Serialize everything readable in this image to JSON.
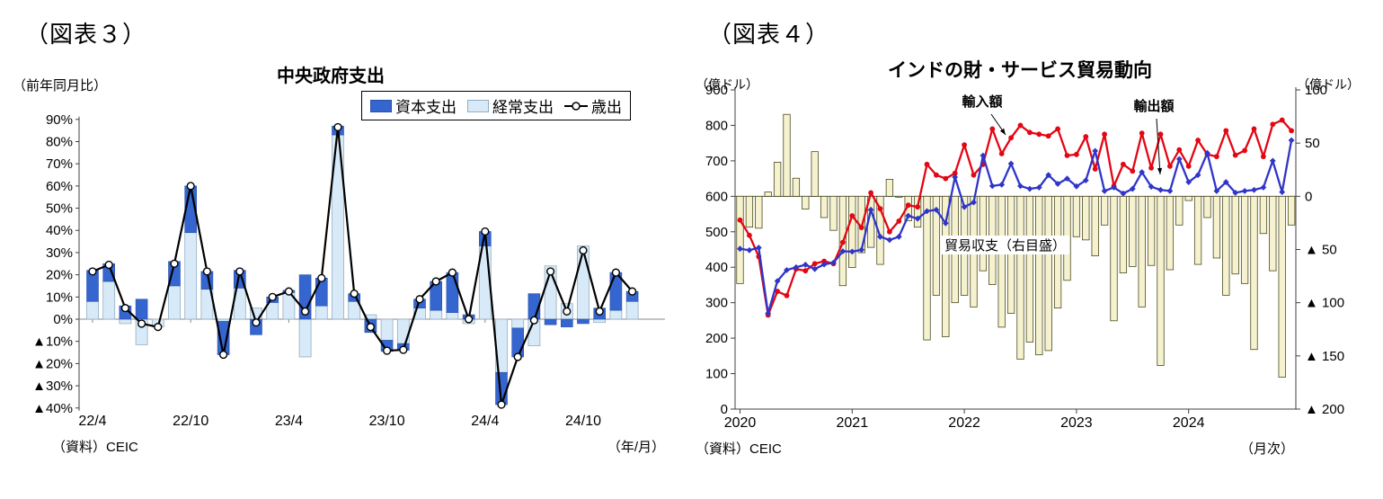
{
  "page": {
    "background": "#ffffff"
  },
  "chart_data": [
    {
      "type": "bar",
      "subtype": "stacked-bars-with-line",
      "tag": "（図表３）",
      "title": "中央政府支出",
      "axis_unit": "（前年同月比）",
      "source": "（資料）CEIC",
      "x_unit": "（年/月）",
      "legend": {
        "capital": "資本支出",
        "current": "経常支出",
        "line": "歳出"
      },
      "colors": {
        "capital": "#3565CE",
        "capital_border": "#2a4faa",
        "current": "#D8EAF8",
        "current_border": "#92AEC4",
        "line": "#000000",
        "marker_fill": "#ffffff"
      },
      "ylim": [
        -40,
        90
      ],
      "ytick_labels": [
        "90%",
        "80%",
        "70%",
        "60%",
        "50%",
        "40%",
        "30%",
        "20%",
        "10%",
        "0%",
        "▲10%",
        "▲20%",
        "▲30%",
        "▲40%"
      ],
      "ytick_values": [
        90,
        80,
        70,
        60,
        50,
        40,
        30,
        20,
        10,
        0,
        -10,
        -20,
        -30,
        -40
      ],
      "xtick_indices": [
        0,
        6,
        12,
        18,
        24,
        30
      ],
      "categories": [
        "22/4",
        "22/5",
        "22/6",
        "22/7",
        "22/8",
        "22/9",
        "22/10",
        "22/11",
        "22/12",
        "23/1",
        "23/2",
        "23/3",
        "23/4",
        "23/5",
        "23/6",
        "23/7",
        "23/8",
        "23/9",
        "23/10",
        "23/11",
        "23/12",
        "24/1",
        "24/2",
        "24/3",
        "24/4",
        "24/5",
        "24/6",
        "24/7",
        "24/8",
        "24/9",
        "24/10",
        "24/11",
        "24/12",
        "25/1"
      ],
      "series": [
        {
          "name": "経常支出",
          "role": "current",
          "values": [
            8,
            17,
            -2,
            -11.5,
            -3.5,
            15,
            39,
            13.5,
            -1,
            14,
            5,
            7.5,
            12,
            -17,
            6,
            83,
            8,
            2,
            -9.5,
            -11,
            5,
            4,
            3,
            -2,
            33,
            -24,
            -4,
            -12,
            24,
            7,
            33,
            -1.5,
            4,
            8
          ]
        },
        {
          "name": "資本支出",
          "role": "capital",
          "values": [
            14,
            8,
            6,
            9,
            0,
            11,
            21,
            8,
            -15,
            8,
            -7,
            2.5,
            1,
            20,
            12.5,
            4,
            3.5,
            -6,
            -5,
            -3,
            4,
            13,
            18,
            2,
            6.5,
            -14.5,
            -13,
            11.5,
            -2.5,
            -3.5,
            -2,
            5,
            17,
            4.5
          ]
        },
        {
          "name": "歳出",
          "role": "line",
          "values": [
            21.5,
            24.5,
            5,
            -2,
            -3.5,
            25,
            60,
            21.5,
            -16,
            21.5,
            -1.5,
            10,
            12.5,
            3.5,
            18.5,
            86.5,
            11.5,
            -3.5,
            -14.2,
            -13.8,
            9,
            17,
            21,
            0,
            39.5,
            -38.5,
            -17,
            -0.5,
            21.5,
            3.5,
            31,
            3.5,
            21,
            12.5
          ]
        }
      ]
    },
    {
      "type": "bar",
      "subtype": "bars-with-two-lines-dual-axis",
      "tag": "（図表４）",
      "title": "インドの財・サービス貿易動向",
      "axis_unit_left": "（億ドル）",
      "axis_unit_right": "（億ドル）",
      "source": "（資料）CEIC",
      "x_unit": "（月次）",
      "annotations": {
        "imports": "輸入額",
        "exports": "輸出額",
        "balance": "貿易収支（右目盛）"
      },
      "colors": {
        "imports": "#E30613",
        "exports": "#2F35C8",
        "bars": "#F6F2CF",
        "bars_border": "#4a4a20"
      },
      "ylim_left": [
        0,
        900
      ],
      "ylim_right": [
        -200,
        100
      ],
      "ytick_labels_left": [
        "900",
        "800",
        "700",
        "600",
        "500",
        "400",
        "300",
        "200",
        "100",
        "0"
      ],
      "ytick_values_left": [
        900,
        800,
        700,
        600,
        500,
        400,
        300,
        200,
        100,
        0
      ],
      "ytick_labels_right": [
        "100",
        "50",
        "0",
        "▲ 50",
        "▲ 100",
        "▲ 150",
        "▲ 200"
      ],
      "ytick_values_right": [
        100,
        50,
        0,
        -50,
        -100,
        -150,
        -200
      ],
      "years": [
        "2020",
        "2021",
        "2022",
        "2023",
        "2024"
      ],
      "categories": [
        "2020/1",
        "2020/2",
        "2020/3",
        "2020/4",
        "2020/5",
        "2020/6",
        "2020/7",
        "2020/8",
        "2020/9",
        "2020/10",
        "2020/11",
        "2020/12",
        "2021/1",
        "2021/2",
        "2021/3",
        "2021/4",
        "2021/5",
        "2021/6",
        "2021/7",
        "2021/8",
        "2021/9",
        "2021/10",
        "2021/11",
        "2021/12",
        "2022/1",
        "2022/2",
        "2022/3",
        "2022/4",
        "2022/5",
        "2022/6",
        "2022/7",
        "2022/8",
        "2022/9",
        "2022/10",
        "2022/11",
        "2022/12",
        "2023/1",
        "2023/2",
        "2023/3",
        "2023/4",
        "2023/5",
        "2023/6",
        "2023/7",
        "2023/8",
        "2023/9",
        "2023/10",
        "2023/11",
        "2023/12",
        "2024/1",
        "2024/2",
        "2024/3",
        "2024/4",
        "2024/5",
        "2024/6",
        "2024/7",
        "2024/8",
        "2024/9",
        "2024/10",
        "2024/11",
        "2024/12"
      ],
      "series": [
        {
          "name": "貿易収支（右目盛）",
          "role": "balance",
          "axis": "right",
          "values": [
            -82,
            -29,
            -30,
            4,
            32,
            77,
            17,
            -12,
            42,
            -20,
            -32,
            -84,
            -67,
            -53,
            -48,
            -64,
            16,
            0,
            -23,
            -29,
            -135,
            -93,
            -132,
            -100,
            -93,
            -104,
            -70,
            -83,
            -123,
            -110,
            -153,
            -137,
            -149,
            -145,
            -105,
            -79,
            -38,
            -41,
            -56,
            -27,
            -117,
            -72,
            -66,
            -104,
            -65,
            -159,
            -69,
            -27,
            -4,
            -64,
            -20,
            -58,
            -93,
            -73,
            -82,
            -144,
            -35,
            -70,
            -170,
            -27
          ]
        },
        {
          "name": "輸入額",
          "role": "imports",
          "axis": "left",
          "values": [
            533,
            490,
            430,
            265,
            332,
            320,
            395,
            390,
            410,
            417,
            410,
            470,
            545,
            512,
            610,
            565,
            500,
            530,
            575,
            570,
            690,
            660,
            650,
            665,
            745,
            660,
            690,
            790,
            720,
            765,
            800,
            780,
            775,
            770,
            790,
            715,
            718,
            768,
            677,
            775,
            629,
            690,
            671,
            778,
            680,
            775,
            685,
            731,
            685,
            758,
            718,
            712,
            785,
            716,
            729,
            790,
            712,
            803,
            815,
            785
          ]
        },
        {
          "name": "輸出額",
          "role": "exports",
          "axis": "left",
          "values": [
            452,
            448,
            455,
            270,
            361,
            392,
            400,
            407,
            395,
            408,
            413,
            445,
            444,
            449,
            562,
            486,
            477,
            486,
            545,
            537,
            558,
            562,
            524,
            654,
            570,
            583,
            715,
            629,
            633,
            692,
            629,
            621,
            625,
            660,
            635,
            650,
            628,
            645,
            728,
            615,
            625,
            608,
            621,
            668,
            627,
            618,
            615,
            705,
            640,
            660,
            722,
            615,
            640,
            610,
            615,
            618,
            625,
            700,
            612,
            758
          ]
        }
      ]
    }
  ]
}
